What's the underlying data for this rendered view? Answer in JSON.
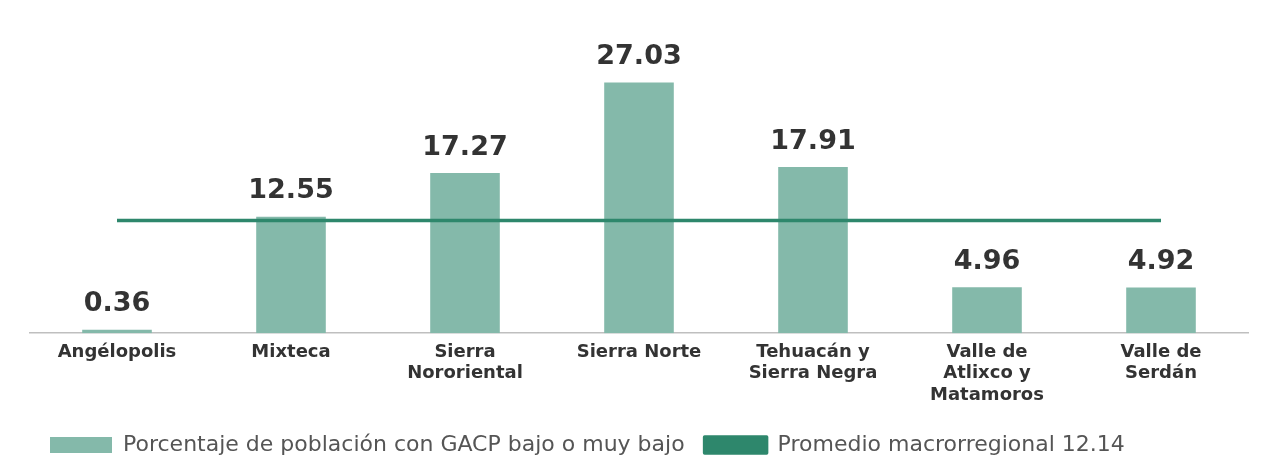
{
  "chart_data": {
    "type": "bar",
    "categories": [
      "Angélopolis",
      "Mixteca",
      "Sierra Nororiental",
      "Sierra Norte",
      "Tehuacán y Sierra Negra",
      "Valle de Atlixco y Matamoros",
      "Valle de Serdán"
    ],
    "series": [
      {
        "name": "Porcentaje de población con GACP bajo o muy bajo",
        "color": "#84b9aa",
        "values": [
          0.36,
          12.55,
          17.27,
          27.03,
          17.91,
          4.96,
          4.92
        ],
        "value_labels": [
          "0.36",
          "12.55",
          "17.27",
          "27.03",
          "17.91",
          "4.96",
          "4.92"
        ]
      },
      {
        "name": "Promedio macrorregional 12.14",
        "type": "line",
        "color": "#2e876c",
        "values": [
          12.14,
          12.14,
          12.14,
          12.14,
          12.14,
          12.14,
          12.14
        ]
      }
    ],
    "legend": "bottom left",
    "grid": false,
    "tick_labels": "x",
    "marker": "none",
    "line_style": "solid"
  }
}
